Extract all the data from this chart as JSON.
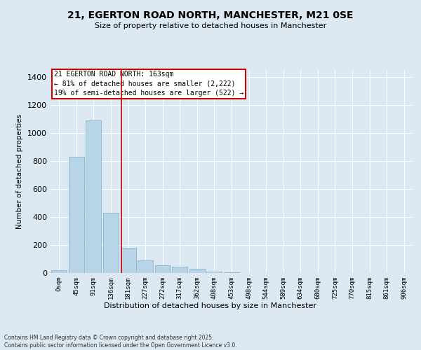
{
  "title_line1": "21, EGERTON ROAD NORTH, MANCHESTER, M21 0SE",
  "title_line2": "Size of property relative to detached houses in Manchester",
  "xlabel": "Distribution of detached houses by size in Manchester",
  "ylabel": "Number of detached properties",
  "bar_color": "#b8d4e8",
  "bar_edge_color": "#7aafc8",
  "background_color": "#dce8f2",
  "fig_background_color": "#dce8f2",
  "grid_color": "#ffffff",
  "categories": [
    "0sqm",
    "45sqm",
    "91sqm",
    "136sqm",
    "181sqm",
    "227sqm",
    "272sqm",
    "317sqm",
    "362sqm",
    "408sqm",
    "453sqm",
    "498sqm",
    "544sqm",
    "589sqm",
    "634sqm",
    "680sqm",
    "725sqm",
    "770sqm",
    "815sqm",
    "861sqm",
    "906sqm"
  ],
  "values": [
    20,
    830,
    1090,
    430,
    180,
    90,
    55,
    45,
    30,
    10,
    5,
    2,
    1,
    0,
    0,
    0,
    0,
    0,
    0,
    0,
    0
  ],
  "ylim": [
    0,
    1450
  ],
  "yticks": [
    0,
    200,
    400,
    600,
    800,
    1000,
    1200,
    1400
  ],
  "property_line_x": 3.6,
  "annotation_title": "21 EGERTON ROAD NORTH: 163sqm",
  "annotation_line1": "← 81% of detached houses are smaller (2,222)",
  "annotation_line2": "19% of semi-detached houses are larger (522) →",
  "annotation_box_color": "#ffffff",
  "annotation_box_edge_color": "#cc0000",
  "property_line_color": "#cc0000",
  "footer_line1": "Contains HM Land Registry data © Crown copyright and database right 2025.",
  "footer_line2": "Contains public sector information licensed under the Open Government Licence v3.0."
}
